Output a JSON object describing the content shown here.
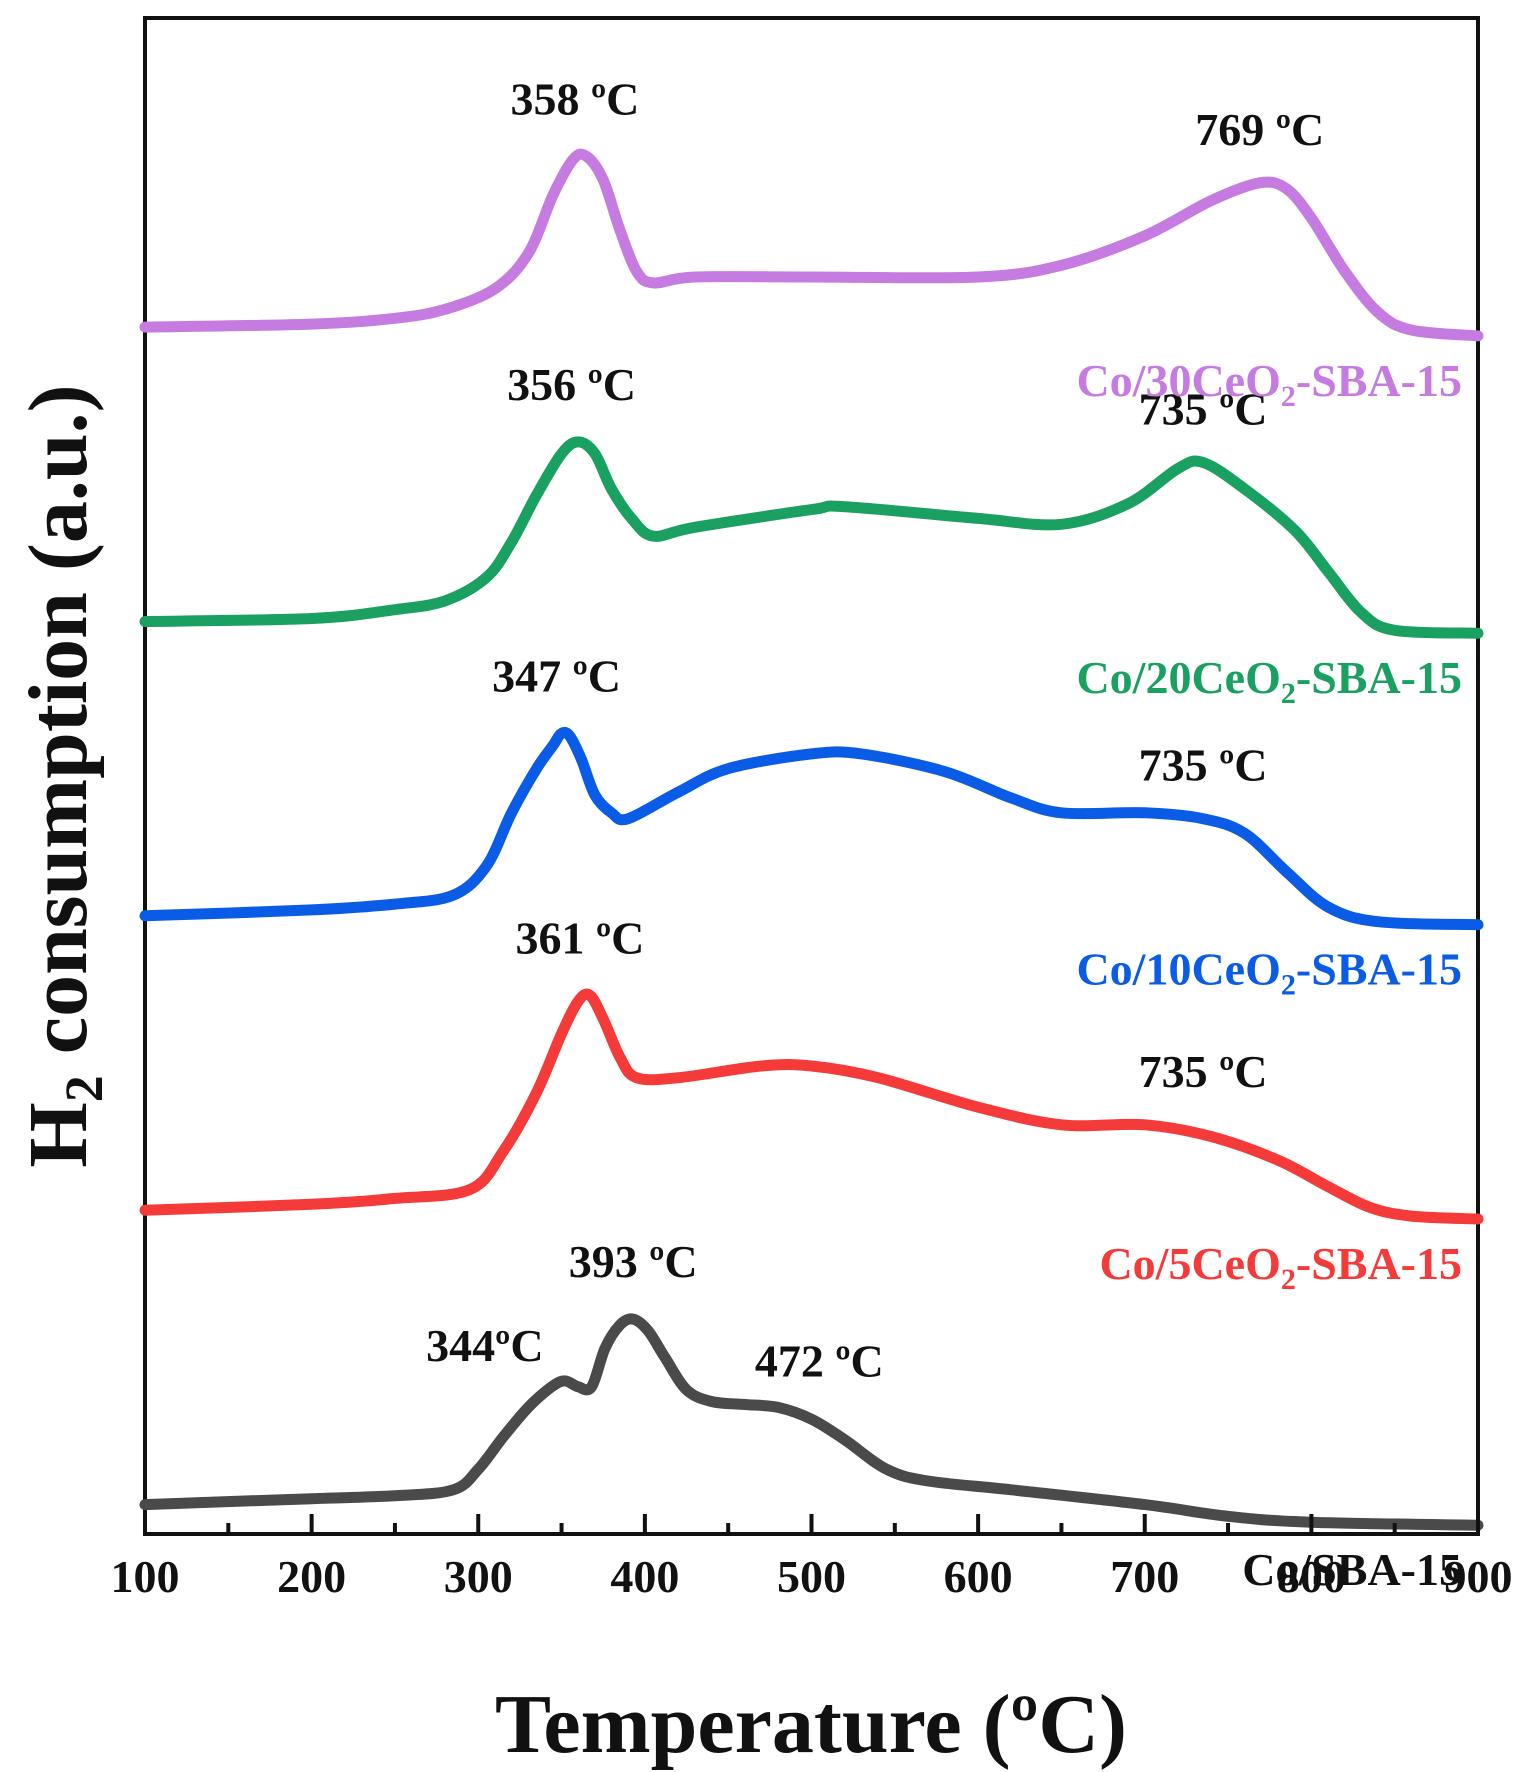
{
  "chart_data": {
    "type": "line",
    "title": "",
    "xlabel": "Temperature (ºC)",
    "ylabel": {
      "main": "H",
      "sub": "2",
      "rest": " consumption (a.u.)"
    },
    "xlim": [
      100,
      900
    ],
    "ylim": [
      -0.05,
      5.1
    ],
    "x_ticks": [
      "100",
      "200",
      "300",
      "400",
      "500",
      "600",
      "700",
      "800",
      "900"
    ],
    "grid": false,
    "legend": "inline labels at right",
    "series": [
      {
        "name": "Co/30CeO2-SBA-15",
        "label": {
          "pre": "Co/30CeO",
          "sub": "2",
          "post": "-SBA-15"
        },
        "color": "#c67be0",
        "points": [
          [
            100,
            4.05
          ],
          [
            200,
            4.06
          ],
          [
            250,
            4.08
          ],
          [
            280,
            4.11
          ],
          [
            310,
            4.18
          ],
          [
            330,
            4.3
          ],
          [
            345,
            4.5
          ],
          [
            357,
            4.62
          ],
          [
            365,
            4.63
          ],
          [
            375,
            4.55
          ],
          [
            385,
            4.38
          ],
          [
            395,
            4.24
          ],
          [
            405,
            4.2
          ],
          [
            430,
            4.22
          ],
          [
            500,
            4.22
          ],
          [
            600,
            4.22
          ],
          [
            650,
            4.26
          ],
          [
            700,
            4.36
          ],
          [
            740,
            4.48
          ],
          [
            769,
            4.54
          ],
          [
            785,
            4.52
          ],
          [
            800,
            4.42
          ],
          [
            820,
            4.24
          ],
          [
            840,
            4.1
          ],
          [
            860,
            4.04
          ],
          [
            900,
            4.02
          ]
        ]
      },
      {
        "name": "Co/20CeO2-SBA-15",
        "label": {
          "pre": "Co/20CeO",
          "sub": "2",
          "post": "-SBA-15"
        },
        "color": "#1aa060",
        "points": [
          [
            100,
            3.05
          ],
          [
            200,
            3.06
          ],
          [
            250,
            3.09
          ],
          [
            280,
            3.12
          ],
          [
            305,
            3.2
          ],
          [
            320,
            3.32
          ],
          [
            335,
            3.48
          ],
          [
            350,
            3.62
          ],
          [
            360,
            3.66
          ],
          [
            370,
            3.62
          ],
          [
            380,
            3.5
          ],
          [
            392,
            3.4
          ],
          [
            405,
            3.34
          ],
          [
            430,
            3.37
          ],
          [
            500,
            3.43
          ],
          [
            520,
            3.44
          ],
          [
            600,
            3.4
          ],
          [
            650,
            3.38
          ],
          [
            690,
            3.45
          ],
          [
            720,
            3.57
          ],
          [
            735,
            3.59
          ],
          [
            760,
            3.5
          ],
          [
            790,
            3.36
          ],
          [
            810,
            3.22
          ],
          [
            830,
            3.08
          ],
          [
            850,
            3.02
          ],
          [
            900,
            3.01
          ]
        ]
      },
      {
        "name": "Co/10CeO2-SBA-15",
        "label": {
          "pre": "Co/10CeO",
          "sub": "2",
          "post": "-SBA-15"
        },
        "color": "#0a5ce6",
        "points": [
          [
            100,
            2.05
          ],
          [
            200,
            2.07
          ],
          [
            250,
            2.09
          ],
          [
            285,
            2.12
          ],
          [
            305,
            2.22
          ],
          [
            320,
            2.4
          ],
          [
            335,
            2.55
          ],
          [
            345,
            2.63
          ],
          [
            350,
            2.67
          ],
          [
            355,
            2.66
          ],
          [
            362,
            2.58
          ],
          [
            370,
            2.46
          ],
          [
            380,
            2.4
          ],
          [
            390,
            2.38
          ],
          [
            420,
            2.47
          ],
          [
            450,
            2.55
          ],
          [
            500,
            2.6
          ],
          [
            530,
            2.6
          ],
          [
            580,
            2.54
          ],
          [
            620,
            2.45
          ],
          [
            650,
            2.4
          ],
          [
            700,
            2.4
          ],
          [
            735,
            2.38
          ],
          [
            760,
            2.33
          ],
          [
            785,
            2.2
          ],
          [
            810,
            2.08
          ],
          [
            840,
            2.03
          ],
          [
            900,
            2.02
          ]
        ]
      },
      {
        "name": "Co/5CeO2-SBA-15",
        "label": {
          "pre": "Co/5CeO",
          "sub": "2",
          "post": "-SBA-15"
        },
        "color": "#f53a3a",
        "points": [
          [
            100,
            1.05
          ],
          [
            200,
            1.07
          ],
          [
            250,
            1.09
          ],
          [
            295,
            1.12
          ],
          [
            315,
            1.25
          ],
          [
            335,
            1.45
          ],
          [
            350,
            1.65
          ],
          [
            360,
            1.76
          ],
          [
            367,
            1.78
          ],
          [
            375,
            1.7
          ],
          [
            385,
            1.57
          ],
          [
            395,
            1.5
          ],
          [
            420,
            1.5
          ],
          [
            470,
            1.54
          ],
          [
            500,
            1.54
          ],
          [
            540,
            1.5
          ],
          [
            600,
            1.4
          ],
          [
            650,
            1.34
          ],
          [
            700,
            1.34
          ],
          [
            740,
            1.3
          ],
          [
            780,
            1.22
          ],
          [
            810,
            1.13
          ],
          [
            835,
            1.06
          ],
          [
            860,
            1.03
          ],
          [
            900,
            1.02
          ]
        ]
      },
      {
        "name": "Co/SBA-15",
        "label": {
          "pre": "Co/SBA-15",
          "sub": "",
          "post": ""
        },
        "color": "#4a4a4a",
        "points": [
          [
            100,
            0.05
          ],
          [
            200,
            0.07
          ],
          [
            250,
            0.08
          ],
          [
            285,
            0.1
          ],
          [
            300,
            0.17
          ],
          [
            315,
            0.28
          ],
          [
            330,
            0.38
          ],
          [
            344,
            0.45
          ],
          [
            352,
            0.47
          ],
          [
            360,
            0.45
          ],
          [
            368,
            0.45
          ],
          [
            376,
            0.58
          ],
          [
            385,
            0.66
          ],
          [
            393,
            0.68
          ],
          [
            402,
            0.64
          ],
          [
            412,
            0.55
          ],
          [
            425,
            0.44
          ],
          [
            440,
            0.4
          ],
          [
            460,
            0.39
          ],
          [
            480,
            0.38
          ],
          [
            500,
            0.34
          ],
          [
            520,
            0.27
          ],
          [
            545,
            0.17
          ],
          [
            570,
            0.13
          ],
          [
            620,
            0.1
          ],
          [
            700,
            0.05
          ],
          [
            750,
            0.01
          ],
          [
            800,
            -0.01
          ],
          [
            900,
            -0.02
          ]
        ]
      }
    ],
    "annotations": [
      {
        "text": "358 ºC",
        "x": 358,
        "y": 4.63
      },
      {
        "text": "769 ºC",
        "x": 769,
        "y": 4.54
      },
      {
        "text": "356 ºC",
        "x": 356,
        "y": 3.66
      },
      {
        "text": "735 ºC",
        "x": 735,
        "y": 3.59
      },
      {
        "text": "347 ºC",
        "x": 347,
        "y": 2.67
      },
      {
        "text": "735 ºC",
        "x": 735,
        "y": 2.38
      },
      {
        "text": "361 ºC",
        "x": 361,
        "y": 1.78
      },
      {
        "text": "735 ºC",
        "x": 735,
        "y": 1.34
      },
      {
        "text": "393 ºC",
        "x": 393,
        "y": 0.68
      },
      {
        "text": "344ºC",
        "x": 344,
        "y": 0.47
      },
      {
        "text": "472 ºC",
        "x": 472,
        "y": 0.39
      }
    ]
  }
}
